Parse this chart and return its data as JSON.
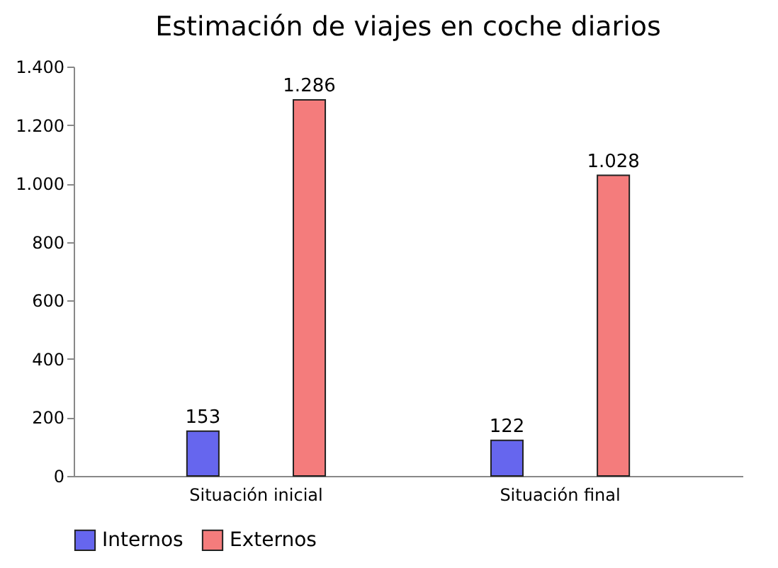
{
  "chart_data": {
    "type": "bar",
    "title": "Estimación de viajes en coche diarios",
    "categories": [
      "Situación inicial",
      "Situación final"
    ],
    "series": [
      {
        "name": "Internos",
        "color": "#6666ee",
        "values": [
          153,
          122
        ],
        "value_labels": [
          "153",
          "122"
        ]
      },
      {
        "name": "Externos",
        "color": "#f47c7c",
        "values": [
          1286,
          1028
        ],
        "value_labels": [
          "1.286",
          "1.028"
        ]
      }
    ],
    "ylim": [
      0,
      1400
    ],
    "yticks": [
      0,
      200,
      400,
      600,
      800,
      {
        "value": 1000,
        "label": "1.000"
      },
      {
        "value": 1200,
        "label": "1.200"
      },
      {
        "value": 1400,
        "label": "1.400"
      }
    ],
    "grid": false,
    "legend": "bottom"
  }
}
